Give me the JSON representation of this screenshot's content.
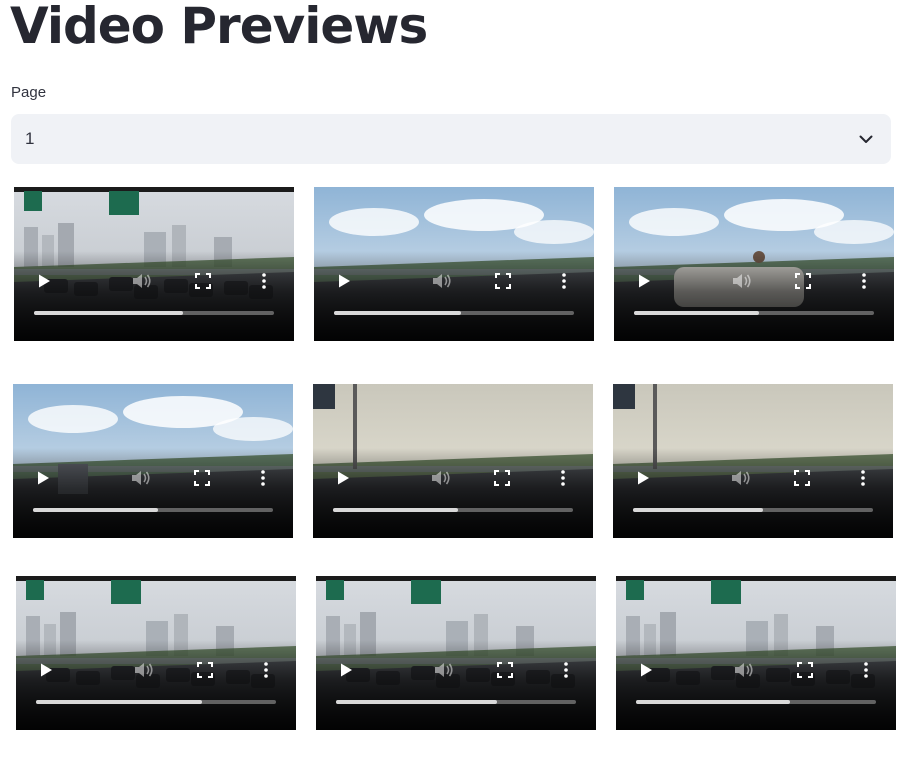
{
  "page_title": "Video Previews",
  "page_select": {
    "label": "Page",
    "value": "1"
  },
  "icons": {
    "dropdown": "chevron-down-icon",
    "play": "play-icon",
    "volume": "volume-icon",
    "fullscreen": "fullscreen-icon",
    "more": "more-vertical-icon"
  },
  "videos": [
    {
      "scene": "city-traffic",
      "progress": 0.62
    },
    {
      "scene": "highway-sky",
      "progress": 0.53
    },
    {
      "scene": "street-person",
      "progress": 0.52
    },
    {
      "scene": "highway-truck",
      "progress": 0.52
    },
    {
      "scene": "hazy-road",
      "progress": 0.52
    },
    {
      "scene": "hazy-road-sign",
      "progress": 0.54
    },
    {
      "scene": "traffic-signs-city",
      "progress": 0.69
    },
    {
      "scene": "traffic-jam-signs",
      "progress": 0.67
    },
    {
      "scene": "traffic-jam-signs",
      "progress": 0.64
    }
  ]
}
